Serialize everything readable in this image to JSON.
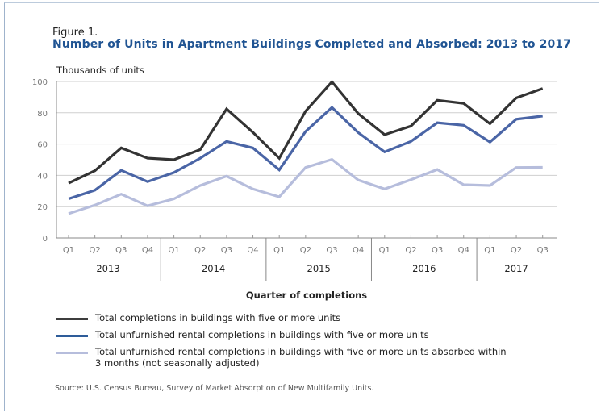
{
  "figure": {
    "label": "Figure 1.",
    "title": "Number of Units in Apartment Buildings Completed and Absorbed: 2013 to 2017",
    "source": "Source: U.S. Census Bureau, Survey of Market Absorption of New Multifamily Units."
  },
  "chart_data": {
    "type": "line",
    "title": "Number of Units in Apartment Buildings Completed and Absorbed: 2013 to 2017",
    "xlabel": "Quarter of completions",
    "ylabel": "Thousands of units",
    "ylim": [
      0,
      100
    ],
    "yticks": [
      0,
      20,
      40,
      60,
      80,
      100
    ],
    "grid": true,
    "legend_position": "bottom",
    "categories": [
      "Q1",
      "Q2",
      "Q3",
      "Q4",
      "Q1",
      "Q2",
      "Q3",
      "Q4",
      "Q1",
      "Q2",
      "Q3",
      "Q4",
      "Q1",
      "Q2",
      "Q3",
      "Q4",
      "Q1",
      "Q2",
      "Q3"
    ],
    "year_groups": [
      {
        "label": "2013",
        "count": 4
      },
      {
        "label": "2014",
        "count": 4
      },
      {
        "label": "2015",
        "count": 4
      },
      {
        "label": "2016",
        "count": 4
      },
      {
        "label": "2017",
        "count": 3
      }
    ],
    "series": [
      {
        "name": "Total completions in buildings with five or more units",
        "color": "#333333",
        "legend_color": "#3d3d3d",
        "values": [
          35,
          43,
          57.5,
          51,
          50,
          56.5,
          82.5,
          67.5,
          51,
          81,
          99.8,
          79.5,
          66,
          71.5,
          88,
          86,
          73,
          89.5,
          95.5
        ]
      },
      {
        "name": "Total unfurnished rental completions in buildings with five or more units",
        "color": "#4a65a6",
        "legend_color": "#2e5c99",
        "values": [
          25,
          30.5,
          43.2,
          36,
          41.8,
          51,
          61.7,
          57.5,
          43.5,
          68,
          83.4,
          67.3,
          55,
          61.7,
          73.6,
          72,
          61.3,
          75.9,
          77.9
        ]
      },
      {
        "name": "Total unfurnished rental completions in buildings with five or more units absorbed within 3 months (not seasonally adjusted)",
        "color": "#b6bddc",
        "legend_color": "#b6bddc",
        "values": [
          15.5,
          21,
          28,
          20.5,
          25,
          33.5,
          39.5,
          31.3,
          26.3,
          45,
          50.2,
          37,
          31.3,
          37.2,
          43.7,
          34,
          33.5,
          45,
          45.1
        ]
      }
    ]
  }
}
